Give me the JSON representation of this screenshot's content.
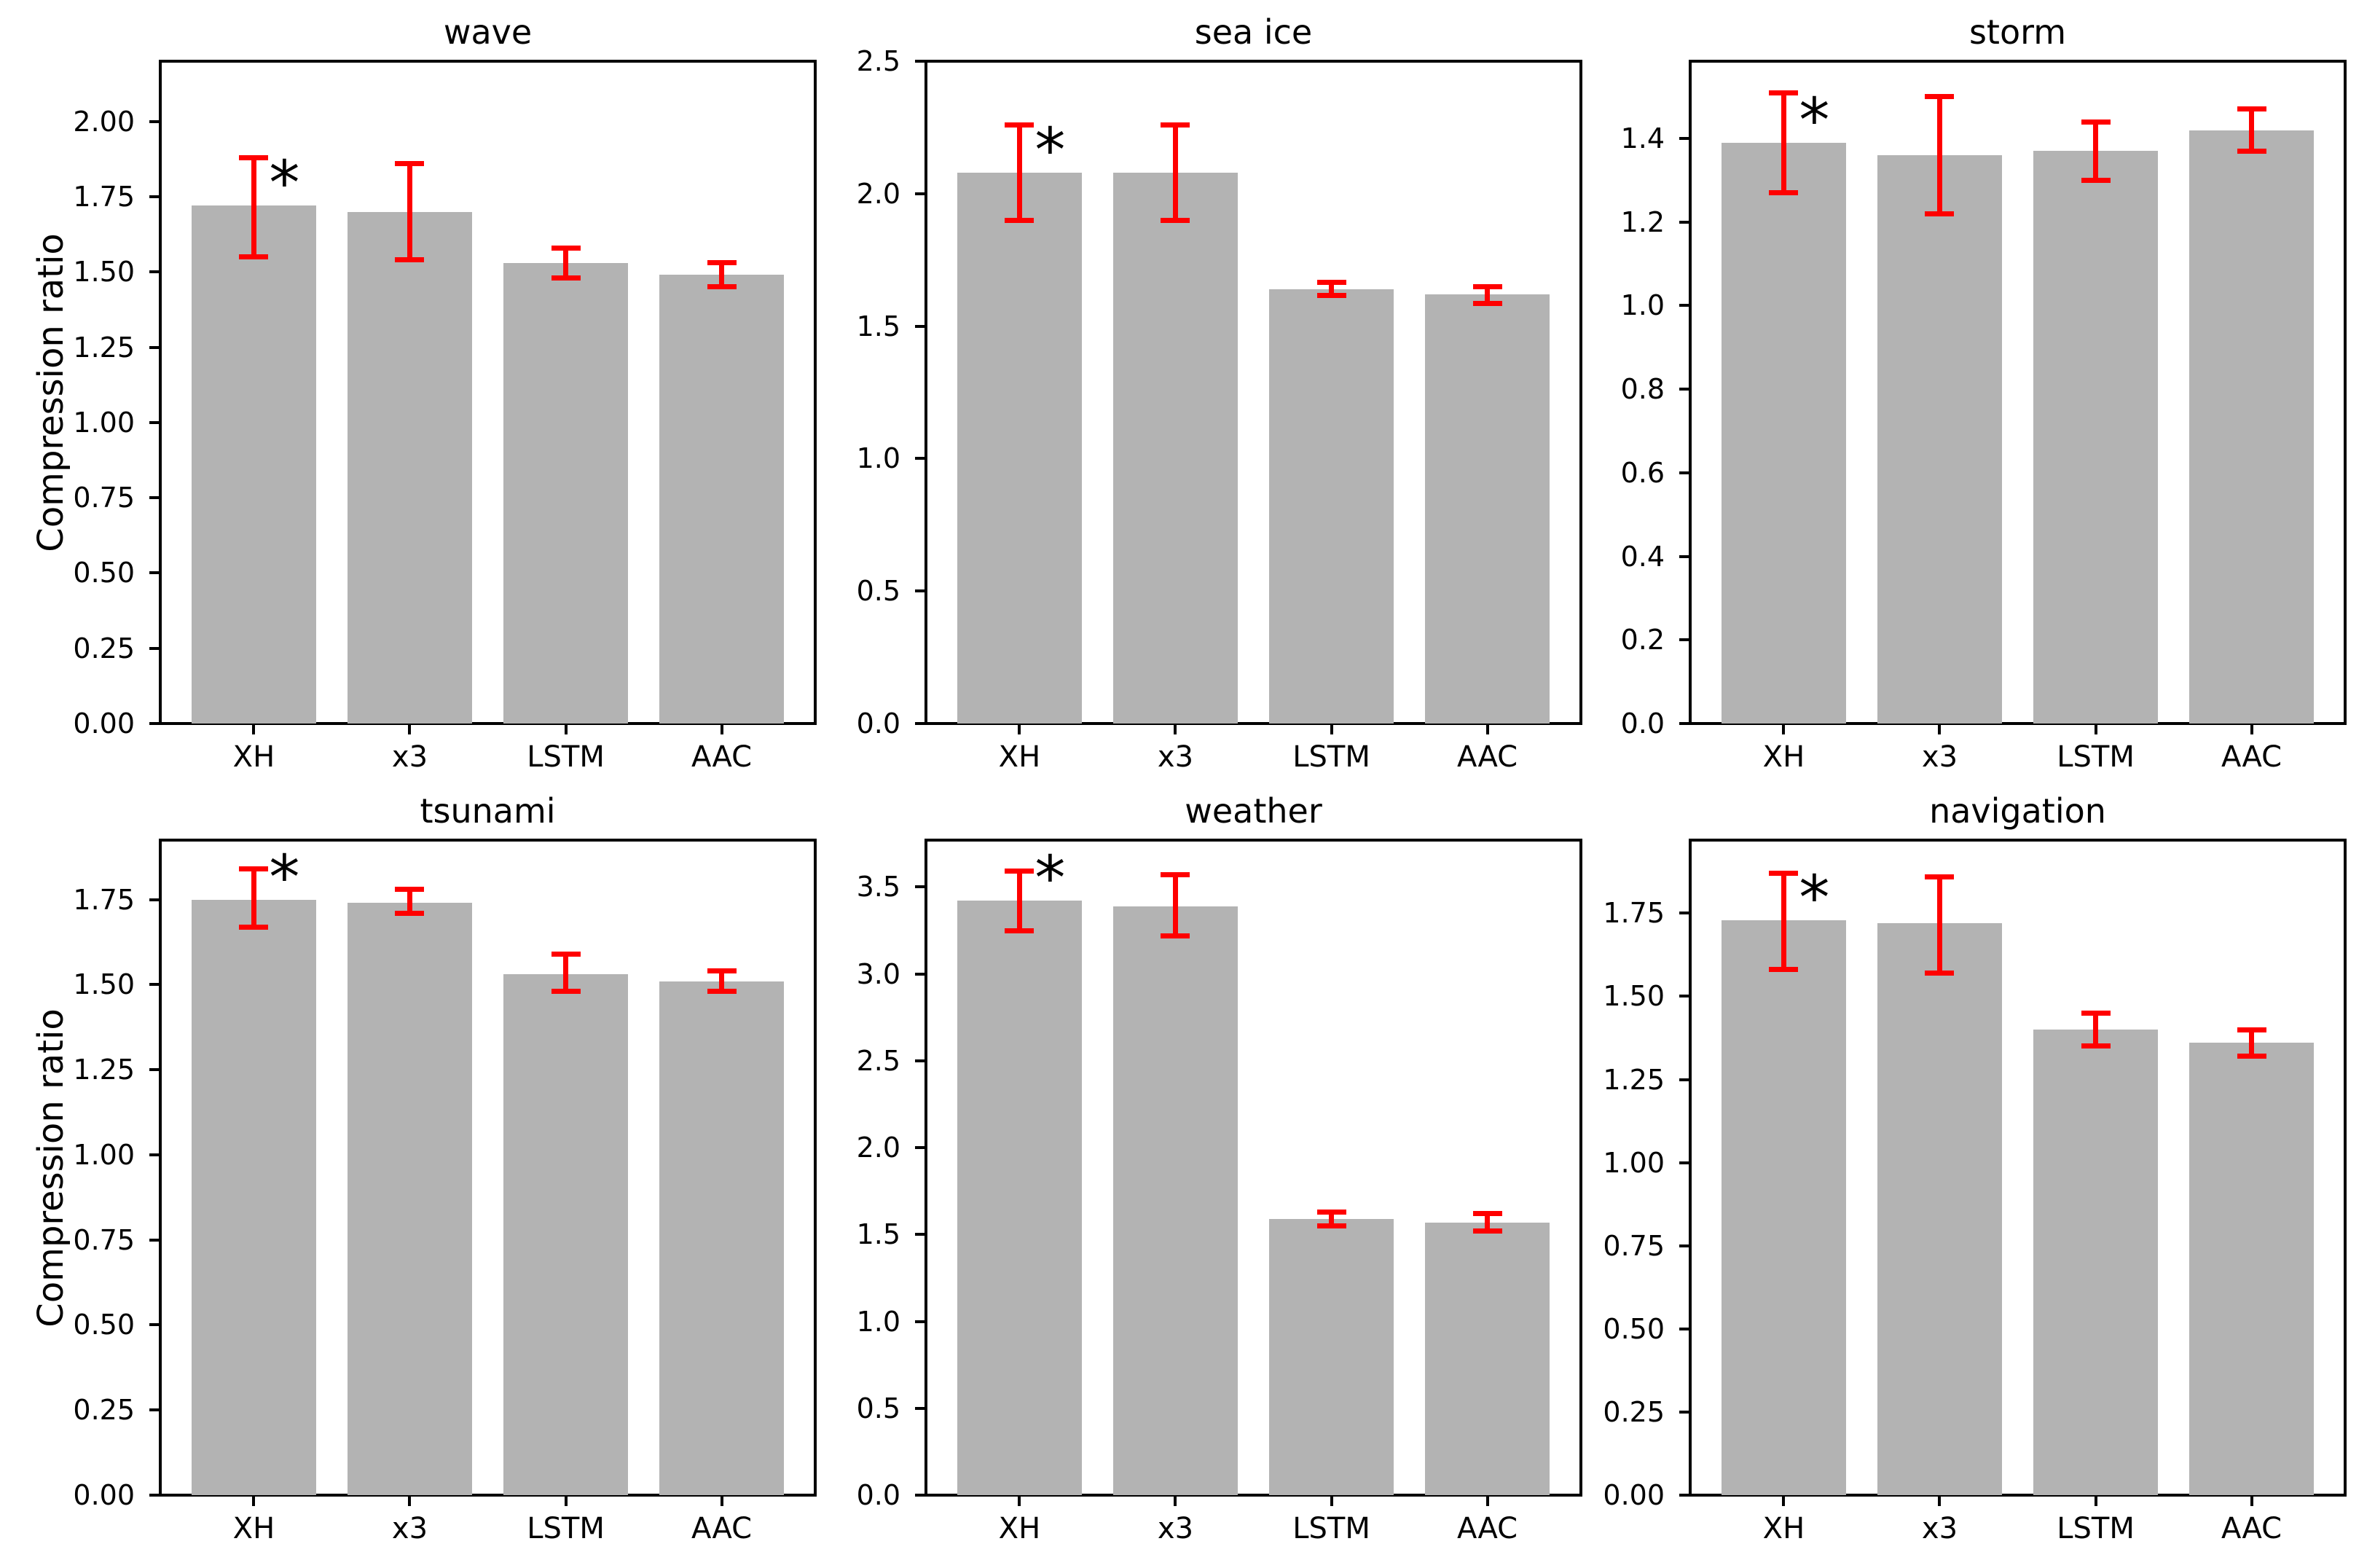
{
  "figure": {
    "background": "#ffffff",
    "ylabel": "Compression ratio",
    "categories": [
      "XH",
      "x3",
      "LSTM",
      "AAC"
    ],
    "bar_color": "#b3b3b3",
    "error_color": "#ff0000",
    "text_color": "#000000",
    "significance_marker": "*",
    "grid": false,
    "legend": null
  },
  "chart_data": [
    {
      "type": "bar",
      "title": "wave",
      "ylabel": "Compression ratio",
      "categories": [
        "XH",
        "x3",
        "LSTM",
        "AAC"
      ],
      "values": [
        1.72,
        1.7,
        1.53,
        1.49
      ],
      "error_low": [
        1.55,
        1.54,
        1.48,
        1.45
      ],
      "error_high": [
        1.88,
        1.86,
        1.58,
        1.53
      ],
      "yticks": [
        0,
        0.25,
        0.5,
        0.75,
        1.0,
        1.25,
        1.5,
        1.75,
        2.0
      ],
      "ytick_labels": [
        "0.00",
        "0.25",
        "0.50",
        "0.75",
        "1.00",
        "1.25",
        "1.50",
        "1.75",
        "2.00"
      ],
      "ylim": [
        0,
        2.2
      ],
      "annotation": {
        "text": "*",
        "category": "XH"
      }
    },
    {
      "type": "bar",
      "title": "sea ice",
      "ylabel": "",
      "categories": [
        "XH",
        "x3",
        "LSTM",
        "AAC"
      ],
      "values": [
        2.08,
        2.08,
        1.64,
        1.62
      ],
      "error_low": [
        1.9,
        1.9,
        1.615,
        1.585
      ],
      "error_high": [
        2.26,
        2.26,
        1.665,
        1.65
      ],
      "yticks": [
        0,
        0.5,
        1.0,
        1.5,
        2.0,
        2.5
      ],
      "ytick_labels": [
        "0.0",
        "0.5",
        "1.0",
        "1.5",
        "2.0",
        "2.5"
      ],
      "ylim": [
        0,
        2.5
      ],
      "annotation": {
        "text": "*",
        "category": "XH"
      }
    },
    {
      "type": "bar",
      "title": "storm",
      "ylabel": "",
      "categories": [
        "XH",
        "x3",
        "LSTM",
        "AAC"
      ],
      "values": [
        1.39,
        1.36,
        1.37,
        1.42
      ],
      "error_low": [
        1.27,
        1.22,
        1.3,
        1.37
      ],
      "error_high": [
        1.51,
        1.5,
        1.44,
        1.47
      ],
      "yticks": [
        0,
        0.2,
        0.4,
        0.6,
        0.8,
        1.0,
        1.2,
        1.4
      ],
      "ytick_labels": [
        "0.0",
        "0.2",
        "0.4",
        "0.6",
        "0.8",
        "1.0",
        "1.2",
        "1.4"
      ],
      "ylim": [
        0,
        1.585
      ],
      "annotation": {
        "text": "*",
        "category": "XH"
      }
    },
    {
      "type": "bar",
      "title": "tsunami",
      "ylabel": "Compression ratio",
      "categories": [
        "XH",
        "x3",
        "LSTM",
        "AAC"
      ],
      "values": [
        1.75,
        1.74,
        1.53,
        1.51
      ],
      "error_low": [
        1.67,
        1.71,
        1.48,
        1.48
      ],
      "error_high": [
        1.84,
        1.78,
        1.59,
        1.54
      ],
      "yticks": [
        0,
        0.25,
        0.5,
        0.75,
        1.0,
        1.25,
        1.5,
        1.75
      ],
      "ytick_labels": [
        "0.00",
        "0.25",
        "0.50",
        "0.75",
        "1.00",
        "1.25",
        "1.50",
        "1.75"
      ],
      "ylim": [
        0,
        1.925
      ],
      "annotation": {
        "text": "*",
        "category": "XH"
      }
    },
    {
      "type": "bar",
      "title": "weather",
      "ylabel": "",
      "categories": [
        "XH",
        "x3",
        "LSTM",
        "AAC"
      ],
      "values": [
        3.42,
        3.39,
        1.59,
        1.57
      ],
      "error_low": [
        3.25,
        3.22,
        1.55,
        1.52
      ],
      "error_high": [
        3.59,
        3.57,
        1.63,
        1.62
      ],
      "yticks": [
        0,
        0.5,
        1.0,
        1.5,
        2.0,
        2.5,
        3.0,
        3.5
      ],
      "ytick_labels": [
        "0.0",
        "0.5",
        "1.0",
        "1.5",
        "2.0",
        "2.5",
        "3.0",
        "3.5"
      ],
      "ylim": [
        0,
        3.77
      ],
      "annotation": {
        "text": "*",
        "category": "XH"
      }
    },
    {
      "type": "bar",
      "title": "navigation",
      "ylabel": "",
      "categories": [
        "XH",
        "x3",
        "LSTM",
        "AAC"
      ],
      "values": [
        1.73,
        1.72,
        1.4,
        1.36
      ],
      "error_low": [
        1.58,
        1.57,
        1.35,
        1.32
      ],
      "error_high": [
        1.87,
        1.86,
        1.45,
        1.4
      ],
      "yticks": [
        0,
        0.25,
        0.5,
        0.75,
        1.0,
        1.25,
        1.5,
        1.75
      ],
      "ytick_labels": [
        "0.00",
        "0.25",
        "0.50",
        "0.75",
        "1.00",
        "1.25",
        "1.50",
        "1.75"
      ],
      "ylim": [
        0,
        1.97
      ],
      "annotation": {
        "text": "*",
        "category": "XH"
      }
    }
  ]
}
